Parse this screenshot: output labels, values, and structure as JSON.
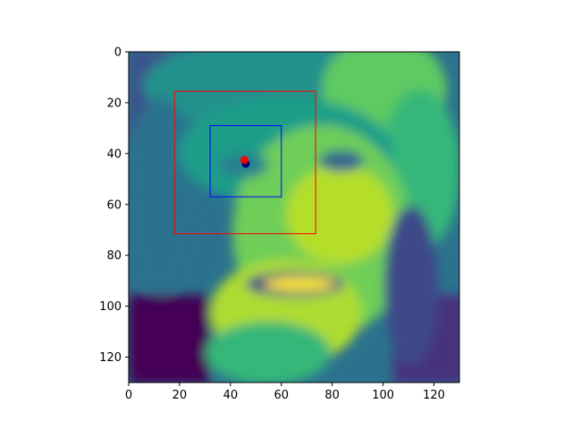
{
  "chart_data": {
    "type": "heatmap",
    "title": "",
    "xlabel": "",
    "ylabel": "",
    "image_size": 130,
    "colormap": "viridis",
    "xlim": [
      0,
      130
    ],
    "ylim": [
      130,
      0
    ],
    "xticks": [
      0,
      20,
      40,
      60,
      80,
      100,
      120
    ],
    "yticks": [
      0,
      20,
      40,
      60,
      80,
      100,
      120
    ],
    "xtick_labels": [
      "0",
      "20",
      "40",
      "60",
      "80",
      "100",
      "120"
    ],
    "ytick_labels": [
      "0",
      "20",
      "40",
      "60",
      "80",
      "100",
      "120"
    ],
    "grid": false,
    "legend": "none",
    "boxes": [
      {
        "name": "outer-box",
        "x0": 18,
        "y0": 15.5,
        "x1": 73.5,
        "y1": 71.5,
        "color": "#ff0000"
      },
      {
        "name": "inner-box",
        "x0": 32,
        "y0": 29,
        "x1": 60,
        "y1": 57,
        "color": "#0000ff"
      }
    ],
    "points": [
      {
        "name": "predicted-point",
        "x": 46,
        "y": 44,
        "color": "#000080"
      },
      {
        "name": "target-point",
        "x": 45.5,
        "y": 42.5,
        "color": "#ff0000"
      }
    ]
  }
}
